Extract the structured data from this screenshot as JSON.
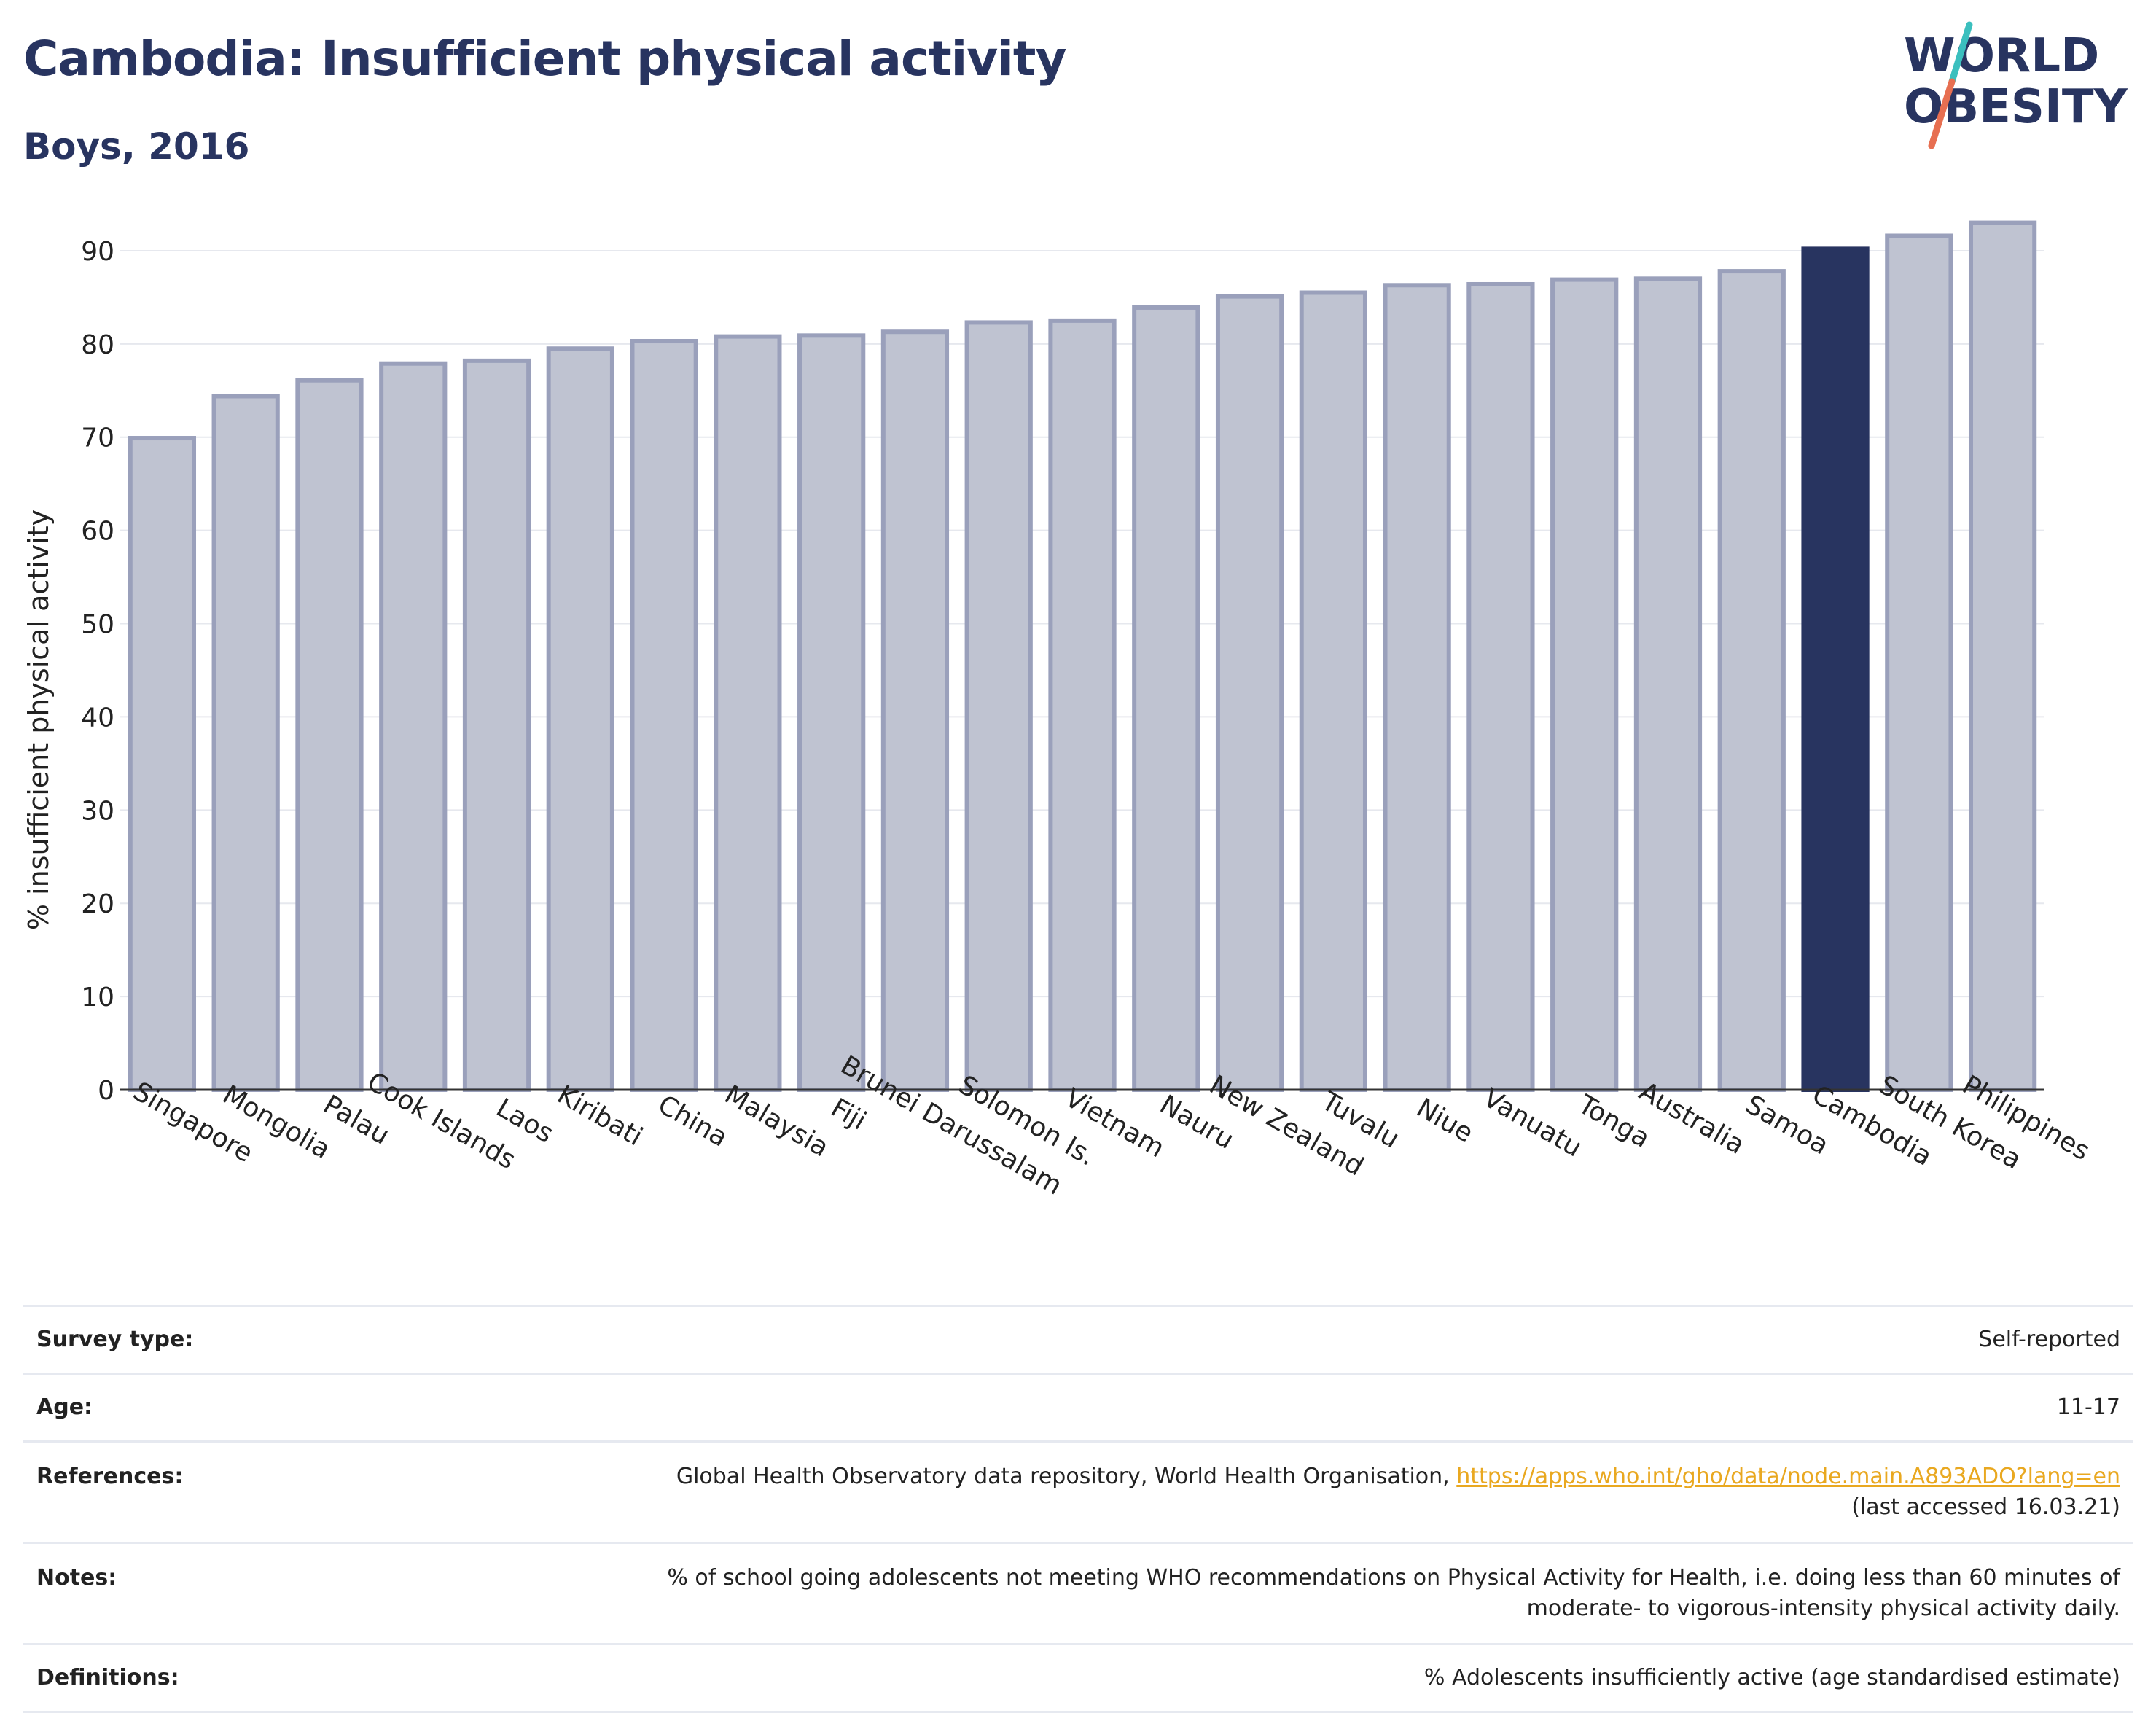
{
  "title": "Cambodia: Insufficient physical activity",
  "subtitle": "Boys, 2016",
  "logo": {
    "line1": "WORLD",
    "line2": "OBESITY",
    "colors": {
      "text": "#283460",
      "slash_teal": "#3bbfbe",
      "slash_red": "#e76f51"
    }
  },
  "colors": {
    "bar": "#bfc3d1",
    "bar_border": "#9aa0bb",
    "highlight": "#283460",
    "grid": "#e6e8ee",
    "axis": "#333333"
  },
  "chart_data": {
    "type": "bar",
    "title": "Cambodia: Insufficient physical activity",
    "subtitle": "Boys, 2016",
    "xlabel": "",
    "ylabel": "% insufficient physical activity",
    "ylim": [
      0,
      95
    ],
    "yticks": [
      0,
      10,
      20,
      30,
      40,
      50,
      60,
      70,
      80,
      90
    ],
    "grid": true,
    "highlight": "Cambodia",
    "categories": [
      "Singapore",
      "Mongolia",
      "Palau",
      "Cook Islands",
      "Laos",
      "Kiribati",
      "China",
      "Malaysia",
      "Fiji",
      "Brunei Darussalam",
      "Solomon Is.",
      "Vietnam",
      "Nauru",
      "New Zealand",
      "Tuvalu",
      "Niue",
      "Vanuatu",
      "Tonga",
      "Australia",
      "Samoa",
      "Cambodia",
      "South Korea",
      "Philippines"
    ],
    "values": [
      69.9,
      74.4,
      76.1,
      77.9,
      78.2,
      79.5,
      80.3,
      80.8,
      80.9,
      81.3,
      82.3,
      82.5,
      83.9,
      85.1,
      85.5,
      86.3,
      86.4,
      86.9,
      87.0,
      87.8,
      90.2,
      91.6,
      93.0
    ]
  },
  "info": {
    "survey_type_label": "Survey type:",
    "survey_type": "Self-reported",
    "age_label": "Age:",
    "age": "11-17",
    "references_label": "References:",
    "references_text": "Global Health Observatory data repository, World Health Organisation,",
    "references_link": "https://apps.who.int/gho/data/node.main.A893ADO?lang=en",
    "references_accessed": "(last accessed 16.03.21)",
    "notes_label": "Notes:",
    "notes_line1": "% of school going adolescents not meeting WHO recommendations on Physical Activity for Health, i.e. doing less than 60 minutes of",
    "notes_line2": "moderate- to vigorous-intensity physical activity daily.",
    "definitions_label": "Definitions:",
    "definitions": "% Adolescents insufficiently active (age standardised estimate)"
  }
}
